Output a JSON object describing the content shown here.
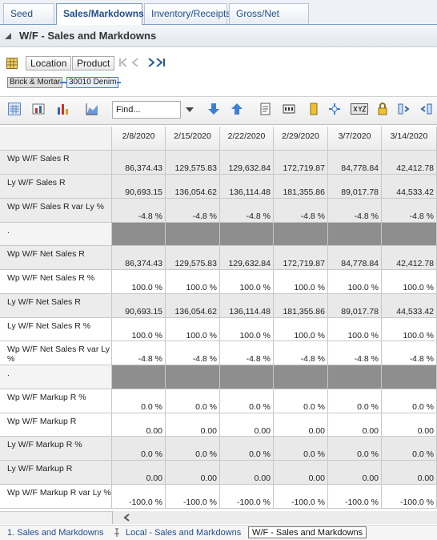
{
  "tabs": [
    "Seed Plan",
    "Sales/Markdowns",
    "Inventory/Receipts",
    "Gross/Net Margin"
  ],
  "panel": {
    "title": "W/F - Sales and Markdowns"
  },
  "buttons": [
    "Location",
    "Product"
  ],
  "breadcrumbs": [
    "Brick & Mortar",
    "30010 Denim"
  ],
  "find": "Find...",
  "table": {
    "columns": [
      "2/8/2020",
      "2/15/2020",
      "2/22/2020",
      "2/29/2020",
      "3/7/2020",
      "3/14/2020"
    ],
    "rows": [
      {
        "label": "Wp W/F Sales R",
        "values": [
          "86,374.43",
          "129,575.83",
          "129,632.84",
          "172,719.87",
          "84,778.84",
          "42,412.78"
        ]
      },
      {
        "label": "Ly W/F Sales R",
        "values": [
          "90,693.15",
          "136,054.62",
          "136,114.48",
          "181,355.86",
          "89,017.78",
          "44,533.42"
        ]
      },
      {
        "label": "Wp W/F Sales R var Ly %",
        "values": [
          "-4.8 %",
          "-4.8 %",
          "-4.8 %",
          "-4.8 %",
          "-4.8 %",
          "-4.8 %"
        ]
      },
      {
        "label": "."
      },
      {
        "label": "Wp W/F Net Sales R",
        "values": [
          "86,374.43",
          "129,575.83",
          "129,632.84",
          "172,719.87",
          "84,778.84",
          "42,412.78"
        ]
      },
      {
        "label": "Wp W/F Net Sales R %",
        "values": [
          "100.0 %",
          "100.0 %",
          "100.0 %",
          "100.0 %",
          "100.0 %",
          "100.0 %"
        ]
      },
      {
        "label": "Ly W/F Net Sales R",
        "values": [
          "90,693.15",
          "136,054.62",
          "136,114.48",
          "181,355.86",
          "89,017.78",
          "44,533.42"
        ]
      },
      {
        "label": "Ly W/F Net Sales R %",
        "values": [
          "100.0 %",
          "100.0 %",
          "100.0 %",
          "100.0 %",
          "100.0 %",
          "100.0 %"
        ]
      },
      {
        "label": "Wp W/F Net Sales R var Ly %",
        "values": [
          "-4.8 %",
          "-4.8 %",
          "-4.8 %",
          "-4.8 %",
          "-4.8 %",
          "-4.8 %"
        ]
      },
      {
        "label": "."
      },
      {
        "label": "Wp W/F Markup R %",
        "values": [
          "0.0 %",
          "0.0 %",
          "0.0 %",
          "0.0 %",
          "0.0 %",
          "0.0 %"
        ]
      },
      {
        "label": "Wp W/F Markup R",
        "values": [
          "0.00",
          "0.00",
          "0.00",
          "0.00",
          "0.00",
          "0.00"
        ]
      },
      {
        "label": "Ly W/F Markup R %",
        "values": [
          "0.0 %",
          "0.0 %",
          "0.0 %",
          "0.0 %",
          "0.0 %",
          "0.0 %"
        ]
      },
      {
        "label": "Ly W/F Markup R",
        "values": [
          "0.00",
          "0.00",
          "0.00",
          "0.00",
          "0.00",
          "0.00"
        ]
      },
      {
        "label": "Wp W/F Markup R var Ly %",
        "values": [
          "-100.0 %",
          "-100.0 %",
          "-100.0 %",
          "-100.0 %",
          "-100.0 %",
          "-100.0 %"
        ]
      }
    ]
  },
  "bottom_tabs": [
    "1. Sales and Markdowns",
    "Local - Sales and Markdowns",
    "W/F - Sales and Markdowns"
  ]
}
